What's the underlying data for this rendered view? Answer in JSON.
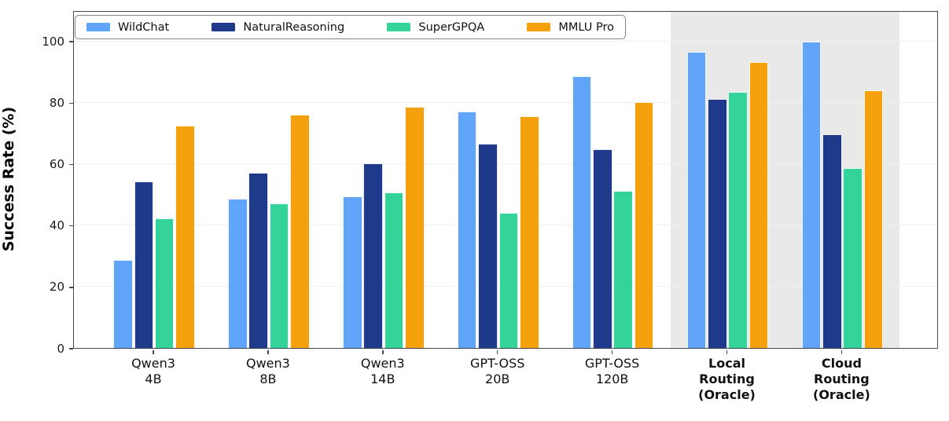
{
  "chart_data": {
    "type": "bar",
    "title": "",
    "xlabel": "",
    "ylabel": "Success Rate (%)",
    "ylim": [
      0,
      110
    ],
    "yticks": [
      0,
      20,
      40,
      60,
      80,
      100
    ],
    "grid": "horizontal",
    "legend_position": "upper-left-inside",
    "categories": [
      {
        "label": "Qwen3 4B",
        "lines": [
          "Qwen3",
          "4B"
        ],
        "bold": false
      },
      {
        "label": "Qwen3 8B",
        "lines": [
          "Qwen3",
          "8B"
        ],
        "bold": false
      },
      {
        "label": "Qwen3 14B",
        "lines": [
          "Qwen3",
          "14B"
        ],
        "bold": false
      },
      {
        "label": "GPT-OSS 20B",
        "lines": [
          "GPT-OSS",
          "20B"
        ],
        "bold": false
      },
      {
        "label": "GPT-OSS 120B",
        "lines": [
          "GPT-OSS",
          "120B"
        ],
        "bold": false
      },
      {
        "label": "Local Routing (Oracle)",
        "lines": [
          "Local",
          "Routing",
          "(Oracle)"
        ],
        "bold": true
      },
      {
        "label": "Cloud Routing (Oracle)",
        "lines": [
          "Cloud",
          "Routing",
          "(Oracle)"
        ],
        "bold": true
      }
    ],
    "series": [
      {
        "name": "WildChat",
        "color": "#60a5fa",
        "values": [
          28.6,
          48.7,
          49.4,
          77.1,
          88.6,
          96.5,
          99.8
        ]
      },
      {
        "name": "NaturalReasoning",
        "color": "#1f3a8a",
        "values": [
          54.2,
          57.0,
          60.0,
          66.6,
          64.7,
          81.0,
          69.5
        ]
      },
      {
        "name": "SuperGPQA",
        "color": "#34d399",
        "values": [
          42.1,
          47.0,
          50.7,
          44.0,
          51.2,
          83.4,
          58.5
        ]
      },
      {
        "name": "MMLU Pro",
        "color": "#f5a10d",
        "values": [
          72.3,
          76.0,
          78.5,
          75.5,
          80.2,
          93.2,
          83.8
        ]
      }
    ],
    "highlight": {
      "start_category": "Local Routing (Oracle)",
      "end_category": "Cloud Routing (Oracle)",
      "from_index": 5,
      "to_index": 6,
      "color": "#e9e9e9"
    }
  }
}
